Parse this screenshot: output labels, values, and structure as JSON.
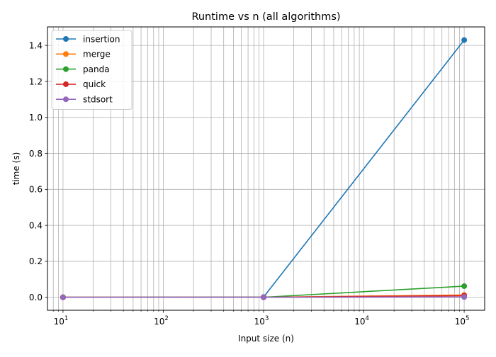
{
  "chart_data": {
    "type": "line",
    "title": "Runtime vs n (all algorithms)",
    "xlabel": "Input size (n)",
    "ylabel": "time (s)",
    "xscale": "log",
    "x": [
      10,
      1000,
      100000
    ],
    "xlim": [
      7,
      160000
    ],
    "ylim": [
      -0.072,
      1.503
    ],
    "xticks": [
      {
        "base": "10",
        "exp": "1",
        "value": 10
      },
      {
        "base": "10",
        "exp": "2",
        "value": 100
      },
      {
        "base": "10",
        "exp": "3",
        "value": 1000
      },
      {
        "base": "10",
        "exp": "4",
        "value": 10000
      },
      {
        "base": "10",
        "exp": "5",
        "value": 100000
      }
    ],
    "yticks": [
      "0.0",
      "0.2",
      "0.4",
      "0.6",
      "0.8",
      "1.0",
      "1.2",
      "1.4"
    ],
    "grid": true,
    "grid_minor_x": true,
    "legend_position": "upper-left",
    "series": [
      {
        "name": "insertion",
        "color": "#1f77b4",
        "values": [
          1e-05,
          0.0015,
          1.43
        ]
      },
      {
        "name": "merge",
        "color": "#ff7f0e",
        "values": [
          1e-05,
          0.0002,
          0.013
        ]
      },
      {
        "name": "panda",
        "color": "#2ca02c",
        "values": [
          0.0003,
          0.0004,
          0.062
        ]
      },
      {
        "name": "quick",
        "color": "#d62728",
        "values": [
          1e-05,
          0.0001,
          0.009
        ]
      },
      {
        "name": "stdsort",
        "color": "#9467bd",
        "values": [
          1e-05,
          5e-05,
          0.0015
        ]
      }
    ]
  }
}
